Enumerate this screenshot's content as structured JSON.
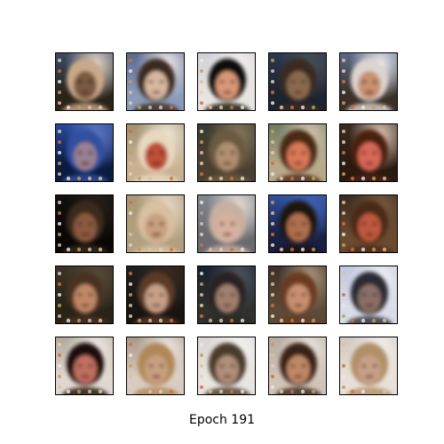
{
  "caption": "Epoch 191",
  "grid": {
    "rows": 5,
    "cols": 5,
    "description_tiles": [
      {
        "bg": "#2a2418",
        "face": "#7a5a40",
        "hair": "#caa88a",
        "halo": "#e8d8c8",
        "bgTop": "#3a4a66"
      },
      {
        "bg": "#8a9ab8",
        "face": "#d8b8a0",
        "hair": "#3a2a20",
        "halo": "#f2ede8",
        "bgTop": "#5a6a90"
      },
      {
        "bg": "#e8e4e0",
        "face": "#d89878",
        "hair": "#100c08",
        "halo": "#f4f0ee",
        "bgTop": "#d0d0d8"
      },
      {
        "bg": "#1c2430",
        "face": "#8a6a50",
        "hair": "#3a2a20",
        "halo": "#4a5058",
        "bgTop": "#2a3850"
      },
      {
        "bg": "#3a3028",
        "face": "#c89070",
        "hair": "#dcd4d0",
        "halo": "#f0eef0",
        "bgTop": "#5a6a8a"
      },
      {
        "bg": "#0c1c40",
        "face": "#9a8090",
        "hair": "#3050a0",
        "halo": "#6078c0",
        "bgTop": "#2848a0"
      },
      {
        "bg": "#c8b090",
        "face": "#c05038",
        "hair": "#e8d8c0",
        "halo": "#f0e8d8",
        "bgTop": "#a09070"
      },
      {
        "bg": "#4a4030",
        "face": "#b09070",
        "hair": "#6a5a40",
        "halo": "#8a7a60",
        "bgTop": "#3a3a30"
      },
      {
        "bg": "#b8a88a",
        "face": "#d87858",
        "hair": "#4a2a18",
        "halo": "#d8c8b0",
        "bgTop": "#6a7a60"
      },
      {
        "bg": "#2a1a10",
        "face": "#d86858",
        "hair": "#4a2010",
        "halo": "#e0c8b8",
        "bgTop": "#3a2a20"
      },
      {
        "bg": "#0a0806",
        "face": "#8a5a40",
        "hair": "#3a2a1a",
        "halo": "#2a2018",
        "bgTop": "#101010"
      },
      {
        "bg": "#b0a080",
        "face": "#c8a080",
        "hair": "#d8c0a0",
        "halo": "#e8dcc8",
        "bgTop": "#a89878"
      },
      {
        "bg": "#6a6a70",
        "face": "#d8b0a0",
        "hair": "#c8b0a0",
        "halo": "#e8e0d8",
        "bgTop": "#808890"
      },
      {
        "bg": "#1a2040",
        "face": "#b07050",
        "hair": "#1a1410",
        "halo": "#4060b0",
        "bgTop": "#3050a0"
      },
      {
        "bg": "#6a4a30",
        "face": "#c05840",
        "hair": "#4a2a18",
        "halo": "#7a5a40",
        "bgTop": "#3a2a20"
      },
      {
        "bg": "#2a2418",
        "face": "#c08868",
        "hair": "#4a3020",
        "halo": "#5a4a38",
        "bgTop": "#3a3428"
      },
      {
        "bg": "#181410",
        "face": "#c8a088",
        "hair": "#5a3a28",
        "halo": "#3a2a20",
        "bgTop": "#202020"
      },
      {
        "bg": "#30302c",
        "face": "#a08070",
        "hair": "#2a2420",
        "halo": "#505860",
        "bgTop": "#182030"
      },
      {
        "bg": "#5a4a38",
        "face": "#c89070",
        "hair": "#6a3a20",
        "halo": "#b09880",
        "bgTop": "#3a3028"
      },
      {
        "bg": "#d8dce8",
        "face": "#8a7068",
        "hair": "#2a2a30",
        "halo": "#eef0f4",
        "bgTop": "#c0c8e0"
      },
      {
        "bg": "#e0d8d0",
        "face": "#c07060",
        "hair": "#1a1008",
        "halo": "#f0ece8",
        "bgTop": "#b0a898"
      },
      {
        "bg": "#d8ccc0",
        "face": "#c8a080",
        "hair": "#b08858",
        "halo": "#f0e8e0",
        "bgTop": "#a89888"
      },
      {
        "bg": "#e8e4e0",
        "face": "#b0907a",
        "hair": "#4a3a2a",
        "halo": "#f6f4f2",
        "bgTop": "#d8d4d0"
      },
      {
        "bg": "#d0c4b8",
        "face": "#c08868",
        "hair": "#3a2418",
        "halo": "#ece4dc",
        "bgTop": "#b8aca0"
      },
      {
        "bg": "#e8e0d8",
        "face": "#c8a088",
        "hair": "#b09068",
        "halo": "#f4f0ec",
        "bgTop": "#d0c8c0"
      }
    ]
  }
}
